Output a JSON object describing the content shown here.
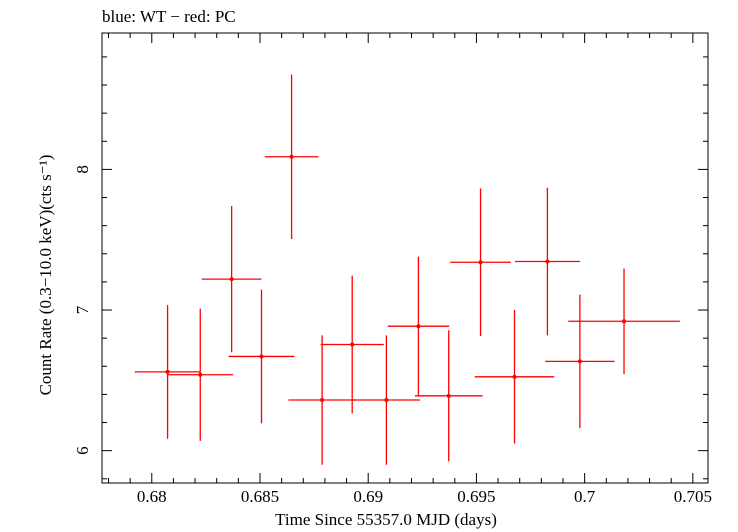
{
  "chart_data": {
    "type": "scatter",
    "title": "blue: WT − red: PC",
    "xlabel": "Time Since 55357.0 MJD (days)",
    "ylabel": "Count Rate (0.3−10.0 keV)(cts s⁻¹)",
    "xlim": [
      0.6777,
      0.7057
    ],
    "ylim": [
      5.77,
      8.97
    ],
    "x_ticks": [
      {
        "value": 0.68,
        "label": "0.68"
      },
      {
        "value": 0.685,
        "label": "0.685"
      },
      {
        "value": 0.69,
        "label": "0.69"
      },
      {
        "value": 0.695,
        "label": "0.695"
      },
      {
        "value": 0.7,
        "label": "0.7"
      },
      {
        "value": 0.705,
        "label": "0.705"
      }
    ],
    "y_ticks": [
      {
        "value": 6,
        "label": "6"
      },
      {
        "value": 7,
        "label": "7"
      },
      {
        "value": 8,
        "label": "8"
      }
    ],
    "grid": false,
    "error_bars": true,
    "series": [
      {
        "color": "#ff0000",
        "points": [
          {
            "x": 0.68073,
            "xerr": 0.00152,
            "y": 6.56,
            "yerr": 0.475
          },
          {
            "x": 0.68224,
            "xerr": 0.00152,
            "y": 6.54,
            "yerr": 0.47
          },
          {
            "x": 0.68369,
            "xerr": 0.00138,
            "y": 7.22,
            "yerr": 0.52
          },
          {
            "x": 0.68507,
            "xerr": 0.00152,
            "y": 6.67,
            "yerr": 0.475
          },
          {
            "x": 0.68646,
            "xerr": 0.00124,
            "y": 8.09,
            "yerr": 0.585
          },
          {
            "x": 0.68787,
            "xerr": 0.00156,
            "y": 6.36,
            "yerr": 0.46
          },
          {
            "x": 0.68926,
            "xerr": 0.00146,
            "y": 6.755,
            "yerr": 0.49
          },
          {
            "x": 0.69084,
            "xerr": 0.00156,
            "y": 6.36,
            "yerr": 0.46
          },
          {
            "x": 0.69232,
            "xerr": 0.00142,
            "y": 6.885,
            "yerr": 0.495
          },
          {
            "x": 0.69372,
            "xerr": 0.00156,
            "y": 6.39,
            "yerr": 0.465
          },
          {
            "x": 0.69519,
            "xerr": 0.0014,
            "y": 7.34,
            "yerr": 0.525
          },
          {
            "x": 0.69676,
            "xerr": 0.00184,
            "y": 6.525,
            "yerr": 0.475
          },
          {
            "x": 0.69828,
            "xerr": 0.0015,
            "y": 7.345,
            "yerr": 0.525
          },
          {
            "x": 0.69978,
            "xerr": 0.0016,
            "y": 6.635,
            "yerr": 0.475
          },
          {
            "x": 0.70182,
            "xerr": 0.00258,
            "y": 6.92,
            "yerr": 0.375
          }
        ]
      }
    ]
  }
}
